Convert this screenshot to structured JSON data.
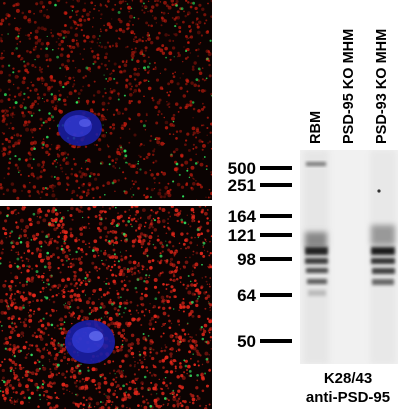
{
  "figure": {
    "micrographs": [
      {
        "name": "micrograph-top",
        "channel_colors": {
          "red": "#d21e10",
          "green": "#2ee05a",
          "nucleus": "#2a2fd6"
        }
      },
      {
        "name": "micrograph-bottom",
        "channel_colors": {
          "red": "#e0261a",
          "green": "#33e060",
          "nucleus": "#2f3ae0"
        }
      }
    ],
    "blot": {
      "lanes": [
        "RBM",
        "PSD-95 KO MHM",
        "PSD-93 KO MHM"
      ],
      "markers": [
        "500",
        "251",
        "164",
        "121",
        "98",
        "64",
        "50"
      ],
      "caption_line1": "K28/43",
      "caption_line2": "anti-PSD-95"
    }
  }
}
